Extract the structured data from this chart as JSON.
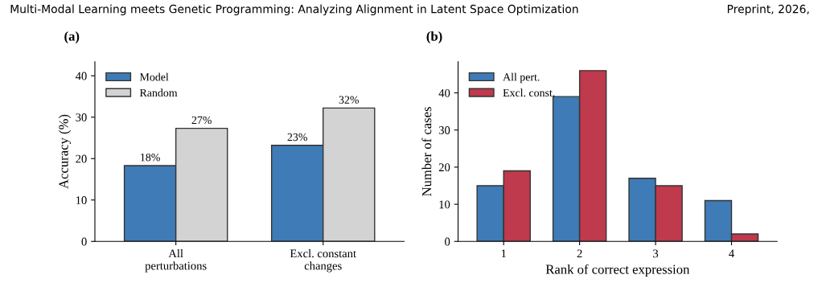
{
  "chart_data": [
    {
      "type": "bar",
      "title": "(a)",
      "ylabel": "Accuracy (%)",
      "categories": [
        "All\nperturbations",
        "Excl. constant\nchanges"
      ],
      "series": [
        {
          "name": "Model",
          "color": "#3f7bb6",
          "values": [
            18.3,
            23.2
          ],
          "value_labels": [
            "18%",
            "23%"
          ]
        },
        {
          "name": "Random",
          "color": "#d3d3d3",
          "values": [
            27.3,
            32.2
          ],
          "value_labels": [
            "27%",
            "32%"
          ]
        }
      ],
      "ylim": [
        0,
        43.4
      ],
      "yticks": [
        0,
        10,
        20,
        30,
        40
      ],
      "grid": false,
      "legend": "top left",
      "annotations": [
        "Multi-Modal Learning meets Genetic Programming: Analyzing Alignment in Latent Space Optimization",
        "Preprint, 2026,"
      ]
    },
    {
      "type": "bar",
      "title": "(b)",
      "xlabel": "Rank of correct expression",
      "ylabel": "Number of cases",
      "categories": [
        "1",
        "2",
        "3",
        "4"
      ],
      "series": [
        {
          "name": "All pert.",
          "color": "#3f7bb6",
          "values": [
            15,
            39,
            17,
            11
          ]
        },
        {
          "name": "Excl. const.",
          "color": "#be3a4c",
          "values": [
            19,
            46,
            15,
            2
          ]
        }
      ],
      "ylim": [
        0,
        48.4
      ],
      "yticks": [
        0,
        10,
        20,
        30,
        40
      ],
      "grid": false,
      "legend": "top left"
    }
  ]
}
